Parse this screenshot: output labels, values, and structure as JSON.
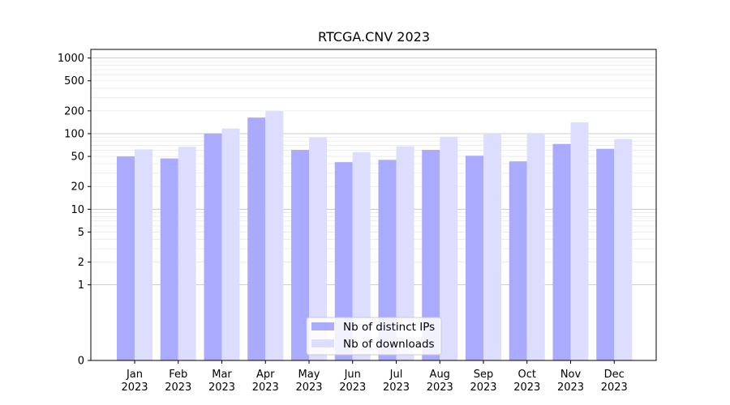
{
  "chart_data": {
    "type": "bar",
    "title": "RTCGA.CNV 2023",
    "xlabel": "",
    "ylabel": "",
    "categories": [
      "Jan\n2023",
      "Feb\n2023",
      "Mar\n2023",
      "Apr\n2023",
      "May\n2023",
      "Jun\n2023",
      "Jul\n2023",
      "Aug\n2023",
      "Sep\n2023",
      "Oct\n2023",
      "Nov\n2023",
      "Dec\n2023"
    ],
    "series": [
      {
        "name": "Nb of distinct IPs",
        "color": "#aaaaff",
        "values": [
          50,
          47,
          100,
          163,
          61,
          42,
          45,
          61,
          51,
          43,
          73,
          63
        ]
      },
      {
        "name": "Nb of downloads",
        "color": "#ddddff",
        "values": [
          62,
          67,
          117,
          199,
          89,
          57,
          68,
          91,
          100,
          100,
          141,
          85
        ]
      }
    ],
    "y_scale": "symlog",
    "ylim": [
      0,
      1300
    ],
    "yticks": [
      0,
      1,
      2,
      5,
      10,
      20,
      50,
      100,
      200,
      500,
      1000
    ],
    "ytick_labels": [
      "0",
      "1",
      "2",
      "5",
      "10",
      "20",
      "50",
      "100",
      "200",
      "500",
      "1000"
    ],
    "grid": true,
    "legend_position": "bottom-center"
  }
}
